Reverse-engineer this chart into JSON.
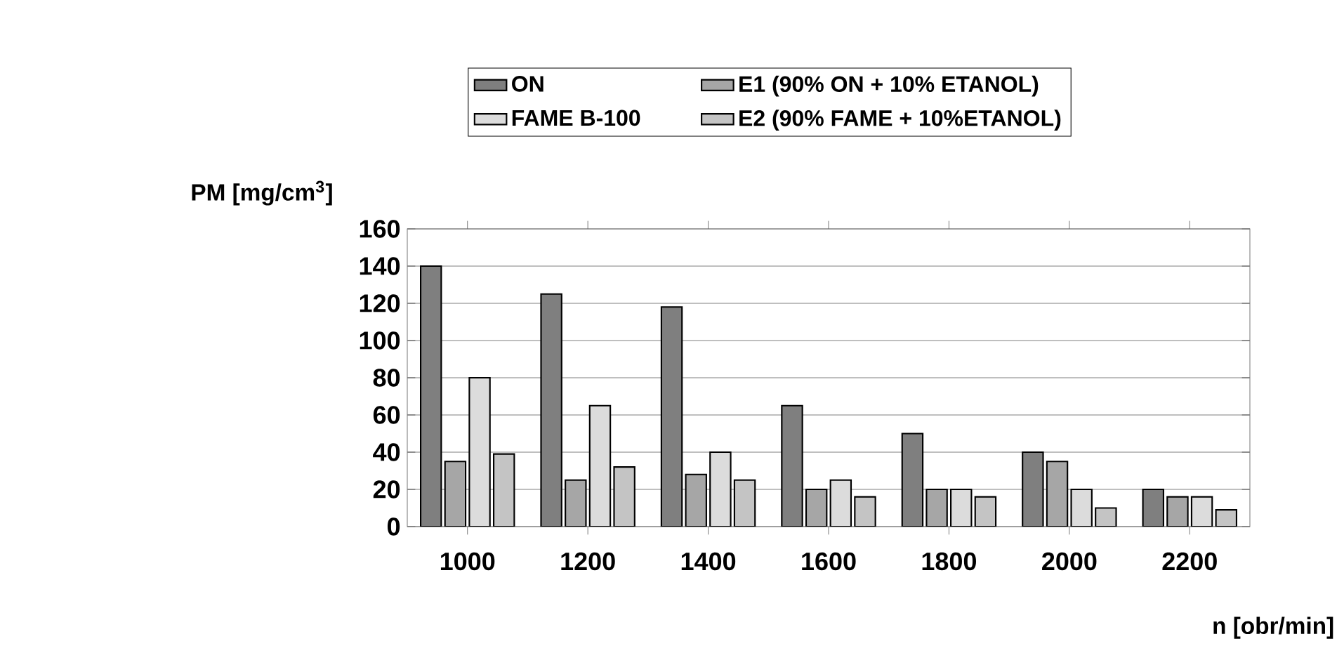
{
  "chart_data": {
    "type": "bar",
    "categories": [
      "1000",
      "1200",
      "1400",
      "1600",
      "1800",
      "2000",
      "2200"
    ],
    "series": [
      {
        "name": "ON",
        "color": "#7f7f7f",
        "values": [
          140,
          125,
          118,
          65,
          50,
          40,
          20
        ]
      },
      {
        "name": "E1 (90% ON + 10% ETANOL)",
        "color": "#a6a6a6",
        "values": [
          35,
          25,
          28,
          20,
          20,
          35,
          16
        ]
      },
      {
        "name": "FAME B-100",
        "color": "#dcdcdc",
        "values": [
          80,
          65,
          40,
          25,
          20,
          20,
          16
        ]
      },
      {
        "name": "E2 (90% FAME + 10%ETANOL)",
        "color": "#c4c4c4",
        "values": [
          39,
          32,
          25,
          16,
          16,
          10,
          9
        ]
      }
    ],
    "xlabel": "n [obr/min]",
    "ylabel": "PM [mg/cm$^{3}$]",
    "ylim": [
      0,
      160
    ],
    "yticks": [
      0,
      20,
      40,
      60,
      80,
      100,
      120,
      140,
      160
    ],
    "grid": "y",
    "legend": "top"
  }
}
